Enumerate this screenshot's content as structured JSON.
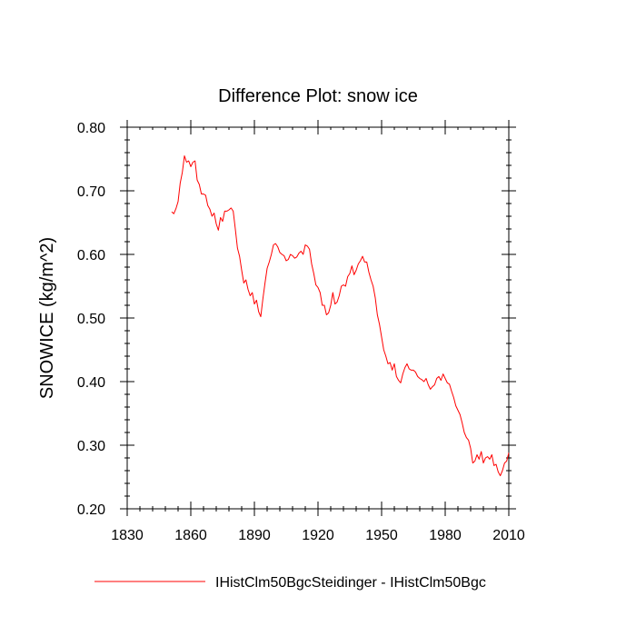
{
  "chart_data": {
    "type": "line",
    "title": "Difference Plot: snow ice",
    "xlabel": "",
    "ylabel": "SNOWICE  (kg/m^2)",
    "xlim": [
      1830,
      2010
    ],
    "ylim": [
      0.2,
      0.8
    ],
    "xticks": [
      1830,
      1860,
      1890,
      1920,
      1950,
      1980,
      2010
    ],
    "xtick_labels": [
      "1830",
      "1860",
      "1890",
      "1920",
      "1950",
      "1980",
      "2010"
    ],
    "yticks": [
      0.2,
      0.3,
      0.4,
      0.5,
      0.6,
      0.7,
      0.8
    ],
    "ytick_labels": [
      "0.20",
      "0.30",
      "0.40",
      "0.50",
      "0.60",
      "0.70",
      "0.80"
    ],
    "grid": false,
    "legend_position": "bottom",
    "series": [
      {
        "name": "IHistClm50BgcSteidinger - IHistClm50Bgc",
        "color": "#ff0000",
        "x": [
          1851,
          1852,
          1853,
          1854,
          1855,
          1856,
          1857,
          1858,
          1859,
          1860,
          1861,
          1862,
          1863,
          1864,
          1865,
          1866,
          1867,
          1868,
          1869,
          1870,
          1871,
          1872,
          1873,
          1874,
          1875,
          1876,
          1877,
          1878,
          1879,
          1880,
          1881,
          1882,
          1883,
          1884,
          1885,
          1886,
          1887,
          1888,
          1889,
          1890,
          1891,
          1892,
          1893,
          1894,
          1895,
          1896,
          1897,
          1898,
          1899,
          1900,
          1901,
          1902,
          1903,
          1904,
          1905,
          1906,
          1907,
          1908,
          1909,
          1910,
          1911,
          1912,
          1913,
          1914,
          1915,
          1916,
          1917,
          1918,
          1919,
          1920,
          1921,
          1922,
          1923,
          1924,
          1925,
          1926,
          1927,
          1928,
          1929,
          1930,
          1931,
          1932,
          1933,
          1934,
          1935,
          1936,
          1937,
          1938,
          1939,
          1940,
          1941,
          1942,
          1943,
          1944,
          1945,
          1946,
          1947,
          1948,
          1949,
          1950,
          1951,
          1952,
          1953,
          1954,
          1955,
          1956,
          1957,
          1958,
          1959,
          1960,
          1961,
          1962,
          1963,
          1964,
          1965,
          1966,
          1967,
          1968,
          1969,
          1970,
          1971,
          1972,
          1973,
          1974,
          1975,
          1976,
          1977,
          1978,
          1979,
          1980,
          1981,
          1982,
          1983,
          1984,
          1985,
          1986,
          1987,
          1988,
          1989,
          1990,
          1991,
          1992,
          1993,
          1994,
          1995,
          1996,
          1997,
          1998,
          1999,
          2000,
          2001,
          2002,
          2003,
          2004,
          2005,
          2006,
          2007,
          2008,
          2009,
          2010
        ],
        "y": [
          0.667,
          0.664,
          0.672,
          0.683,
          0.712,
          0.729,
          0.755,
          0.745,
          0.747,
          0.738,
          0.745,
          0.747,
          0.717,
          0.71,
          0.695,
          0.695,
          0.693,
          0.677,
          0.671,
          0.66,
          0.665,
          0.648,
          0.638,
          0.658,
          0.652,
          0.668,
          0.668,
          0.67,
          0.673,
          0.668,
          0.64,
          0.61,
          0.597,
          0.575,
          0.555,
          0.56,
          0.545,
          0.535,
          0.54,
          0.522,
          0.528,
          0.51,
          0.502,
          0.53,
          0.555,
          0.578,
          0.588,
          0.6,
          0.615,
          0.617,
          0.612,
          0.603,
          0.6,
          0.598,
          0.59,
          0.592,
          0.6,
          0.598,
          0.594,
          0.596,
          0.602,
          0.605,
          0.6,
          0.615,
          0.613,
          0.608,
          0.585,
          0.57,
          0.552,
          0.548,
          0.54,
          0.52,
          0.52,
          0.505,
          0.508,
          0.52,
          0.54,
          0.522,
          0.525,
          0.535,
          0.55,
          0.552,
          0.55,
          0.565,
          0.57,
          0.582,
          0.568,
          0.575,
          0.585,
          0.59,
          0.597,
          0.588,
          0.588,
          0.572,
          0.56,
          0.55,
          0.532,
          0.505,
          0.49,
          0.47,
          0.45,
          0.44,
          0.428,
          0.43,
          0.418,
          0.428,
          0.408,
          0.402,
          0.398,
          0.412,
          0.422,
          0.428,
          0.42,
          0.418,
          0.418,
          0.415,
          0.408,
          0.405,
          0.403,
          0.4,
          0.405,
          0.395,
          0.388,
          0.392,
          0.395,
          0.405,
          0.408,
          0.402,
          0.412,
          0.405,
          0.398,
          0.396,
          0.385,
          0.375,
          0.362,
          0.355,
          0.348,
          0.335,
          0.32,
          0.312,
          0.308,
          0.295,
          0.272,
          0.275,
          0.285,
          0.278,
          0.29,
          0.272,
          0.28,
          0.282,
          0.278,
          0.285,
          0.268,
          0.27,
          0.258,
          0.252,
          0.26,
          0.272,
          0.275,
          0.288
        ]
      }
    ]
  }
}
